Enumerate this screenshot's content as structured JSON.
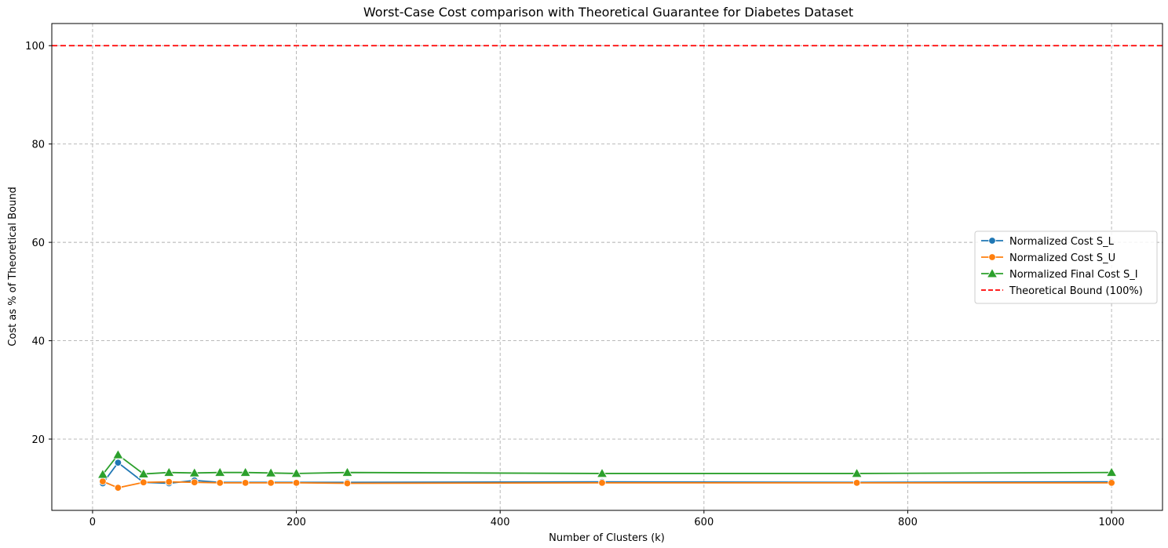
{
  "chart_data": {
    "type": "line",
    "title": "Worst-Case Cost comparison with Theoretical Guarantee for Diabetes Dataset",
    "xlabel": "Number of Clusters (k)",
    "ylabel": "Cost as % of Theoretical Bound",
    "xlim": [
      -40,
      1050
    ],
    "ylim": [
      5.5,
      104.5
    ],
    "xticks": [
      0,
      200,
      400,
      600,
      800,
      1000
    ],
    "yticks": [
      20,
      40,
      60,
      80,
      100
    ],
    "grid": true,
    "legend_position": "center-right",
    "x": [
      10,
      25,
      50,
      75,
      100,
      125,
      150,
      175,
      200,
      250,
      500,
      750,
      1000
    ],
    "series": [
      {
        "name": "Normalized Cost S_L",
        "color": "#1f77b4",
        "marker": "circle",
        "values": [
          11.0,
          15.2,
          11.2,
          11.0,
          11.6,
          11.2,
          11.2,
          11.2,
          11.2,
          11.2,
          11.3,
          11.2,
          11.3
        ]
      },
      {
        "name": "Normalized Cost S_U",
        "color": "#ff7f0e",
        "marker": "circle",
        "values": [
          11.4,
          10.1,
          11.2,
          11.3,
          11.2,
          11.1,
          11.1,
          11.1,
          11.1,
          11.0,
          11.1,
          11.1,
          11.1
        ]
      },
      {
        "name": "Normalized Final Cost S_I",
        "color": "#2ca02c",
        "marker": "triangle",
        "values": [
          12.8,
          16.8,
          12.9,
          13.2,
          13.1,
          13.2,
          13.2,
          13.1,
          13.0,
          13.2,
          13.0,
          13.0,
          13.2
        ]
      }
    ],
    "reference_lines": [
      {
        "name": "Theoretical Bound (100%)",
        "y": 100,
        "color": "#ff0000",
        "style": "dashed"
      }
    ]
  }
}
